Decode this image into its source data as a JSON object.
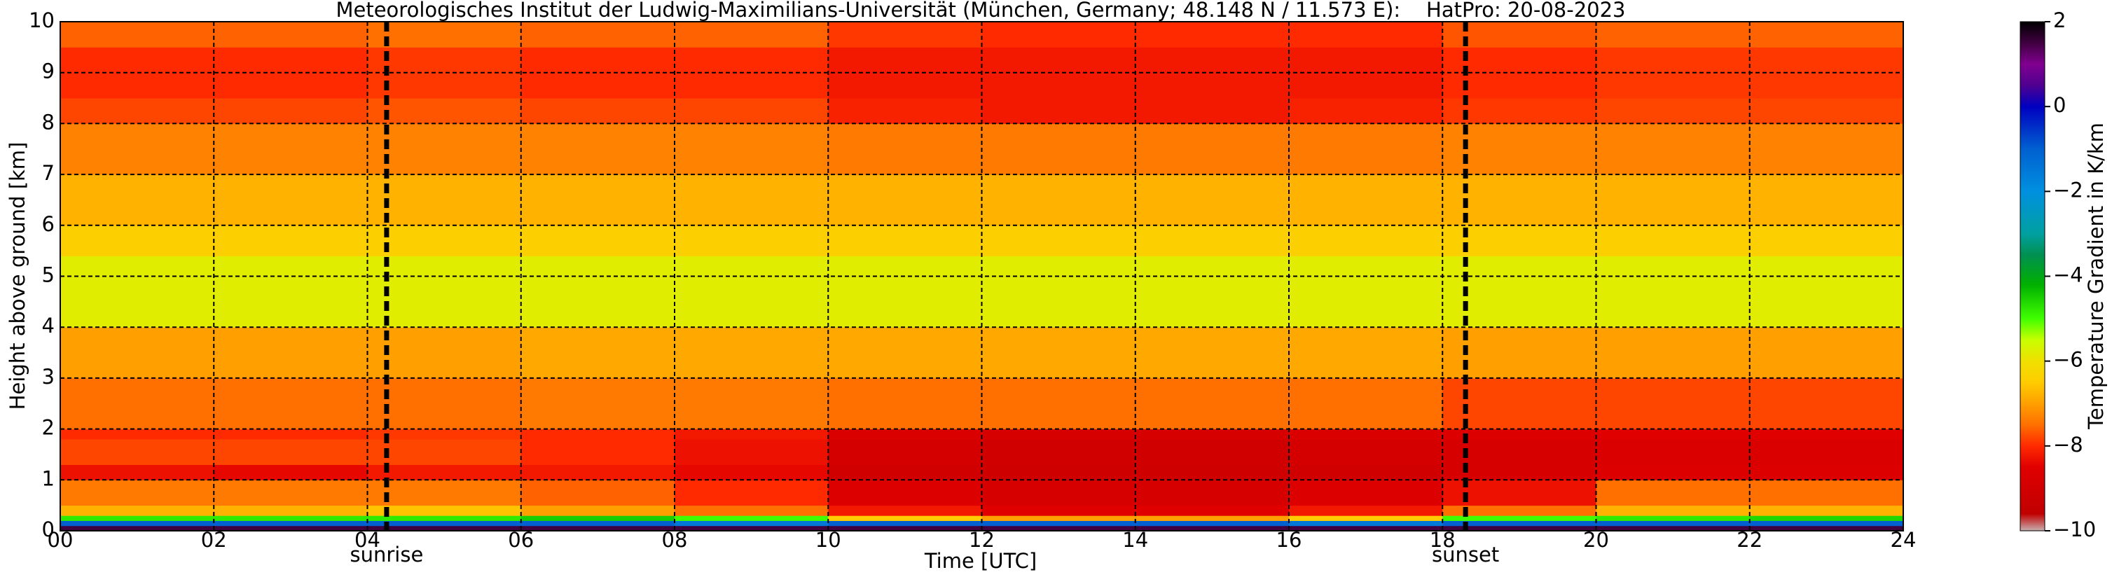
{
  "chart_data": {
    "type": "heatmap",
    "title": "Meteorologisches Institut der Ludwig-Maximilians-Universität (München, Germany; 48.148 N / 11.573 E):    HatPro: 20-08-2023",
    "xlabel": "Time [UTC]",
    "ylabel": "Height above ground [km]",
    "colorbar_label": "Temperature Gradient in K/km",
    "xlim": [
      0,
      24
    ],
    "ylim": [
      0,
      10
    ],
    "xticks": [
      {
        "value": 0,
        "label": "00"
      },
      {
        "value": 2,
        "label": "02"
      },
      {
        "value": 4,
        "label": "04"
      },
      {
        "value": 6,
        "label": "06"
      },
      {
        "value": 8,
        "label": "08"
      },
      {
        "value": 10,
        "label": "10"
      },
      {
        "value": 12,
        "label": "12"
      },
      {
        "value": 14,
        "label": "14"
      },
      {
        "value": 16,
        "label": "16"
      },
      {
        "value": 18,
        "label": "18"
      },
      {
        "value": 20,
        "label": "20"
      },
      {
        "value": 22,
        "label": "22"
      },
      {
        "value": 24,
        "label": "24"
      }
    ],
    "yticks": [
      0,
      1,
      2,
      3,
      4,
      5,
      6,
      7,
      8,
      9,
      10
    ],
    "grid": true,
    "clim": [
      -10,
      2
    ],
    "cticks": [
      {
        "value": -10,
        "label": "−10"
      },
      {
        "value": -8,
        "label": "−8"
      },
      {
        "value": -6,
        "label": "−6"
      },
      {
        "value": -4,
        "label": "−4"
      },
      {
        "value": -2,
        "label": "−2"
      },
      {
        "value": 0,
        "label": "0"
      },
      {
        "value": 2,
        "label": "2"
      }
    ],
    "colorscale": [
      [
        -10,
        "#c8b0b0"
      ],
      [
        -9.6,
        "#c00000"
      ],
      [
        -8.5,
        "#e00000"
      ],
      [
        -8,
        "#ff2a00"
      ],
      [
        -7.5,
        "#ff7000"
      ],
      [
        -7,
        "#ffa000"
      ],
      [
        -6.5,
        "#ffcc00"
      ],
      [
        -6,
        "#f0e000"
      ],
      [
        -5.5,
        "#c8ff00"
      ],
      [
        -5,
        "#40ff00"
      ],
      [
        -4.2,
        "#00b000"
      ],
      [
        -3.5,
        "#009050"
      ],
      [
        -3,
        "#00a0a0"
      ],
      [
        -2,
        "#0090e0"
      ],
      [
        -1,
        "#0060d0"
      ],
      [
        0,
        "#0000c0"
      ],
      [
        0.5,
        "#500090"
      ],
      [
        1,
        "#800090"
      ],
      [
        1.5,
        "#400040"
      ],
      [
        2,
        "#000000"
      ]
    ],
    "x_bins": [
      0,
      2,
      4,
      6,
      8,
      10,
      12,
      14,
      16,
      18,
      20,
      22,
      24
    ],
    "y_bins": [
      0,
      0.1,
      0.2,
      0.3,
      0.5,
      1,
      1.3,
      1.8,
      2,
      3,
      4,
      5.4,
      6,
      7,
      8,
      8.5,
      9.5,
      10
    ],
    "values": [
      [
        1.5,
        1.5,
        1.5,
        1.5,
        1.5,
        1.5,
        1.5,
        1.5,
        1.5,
        1.5,
        1.5,
        1.5
      ],
      [
        -1,
        -1,
        -1,
        -1,
        -1.5,
        -1,
        -1,
        -1,
        -1.5,
        -1,
        -1,
        -1
      ],
      [
        -4.8,
        -4.8,
        -4.8,
        -4.5,
        -5,
        -6.5,
        -7,
        -7,
        -6.5,
        -5,
        -4.8,
        -4.6
      ],
      [
        -6.8,
        -6.8,
        -6.6,
        -7,
        -7.5,
        -8.2,
        -8.5,
        -8.5,
        -8.2,
        -7.5,
        -6.8,
        -6.8
      ],
      [
        -7.4,
        -7.4,
        -7.4,
        -7.6,
        -8,
        -8.6,
        -8.8,
        -8.8,
        -8.6,
        -8.3,
        -7.5,
        -7.5
      ],
      [
        -8.3,
        -8.4,
        -8.2,
        -8.2,
        -8.4,
        -9,
        -9.1,
        -9.1,
        -9,
        -8.8,
        -8.6,
        -8.6
      ],
      [
        -7.8,
        -7.8,
        -7.8,
        -8,
        -8.3,
        -8.9,
        -9,
        -9,
        -8.9,
        -8.8,
        -8.7,
        -8.7
      ],
      [
        -8,
        -8,
        -7.9,
        -8,
        -8.2,
        -8.7,
        -8.8,
        -8.8,
        -8.7,
        -8.6,
        -8.5,
        -8.5
      ],
      [
        -7.5,
        -7.5,
        -7.5,
        -7.4,
        -7.4,
        -7.5,
        -7.5,
        -7.5,
        -7.5,
        -7.8,
        -7.8,
        -7.8
      ],
      [
        -7,
        -7,
        -7,
        -6.9,
        -6.9,
        -6.9,
        -6.9,
        -6.9,
        -6.9,
        -7,
        -7,
        -7
      ],
      [
        -5.8,
        -5.8,
        -5.8,
        -5.8,
        -5.8,
        -5.8,
        -5.8,
        -5.8,
        -5.8,
        -5.8,
        -5.8,
        -5.8
      ],
      [
        -6.4,
        -6.4,
        -6.4,
        -6.4,
        -6.4,
        -6.4,
        -6.4,
        -6.4,
        -6.4,
        -6.4,
        -6.4,
        -6.4
      ],
      [
        -6.8,
        -6.8,
        -6.8,
        -6.8,
        -6.8,
        -6.8,
        -6.8,
        -6.8,
        -6.8,
        -6.8,
        -6.8,
        -6.8
      ],
      [
        -7.3,
        -7.3,
        -7.3,
        -7.3,
        -7.3,
        -7.4,
        -7.4,
        -7.4,
        -7.4,
        -7.3,
        -7.3,
        -7.3
      ],
      [
        -7.8,
        -7.8,
        -7.7,
        -7.8,
        -7.8,
        -8.1,
        -8.2,
        -8.2,
        -8.1,
        -7.9,
        -7.8,
        -7.8
      ],
      [
        -8,
        -8,
        -7.9,
        -8,
        -8,
        -8.2,
        -8.2,
        -8.2,
        -8.2,
        -8,
        -7.9,
        -7.9
      ],
      [
        -7.6,
        -7.6,
        -7.5,
        -7.6,
        -7.6,
        -7.9,
        -8,
        -8,
        -8,
        -7.7,
        -7.6,
        -7.6
      ]
    ],
    "vlines": [
      {
        "x": 4.25,
        "label": "sunrise"
      },
      {
        "x": 18.3,
        "label": "sunset"
      }
    ]
  }
}
